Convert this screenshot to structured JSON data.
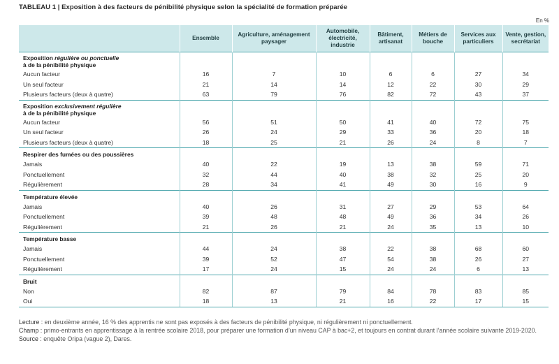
{
  "title": "TABLEAU 1 | Exposition à des facteurs de pénibilité physique selon la spécialité de formation préparée",
  "unit": "En %",
  "columns": [
    "Ensemble",
    "Agriculture, aménagement paysager",
    "Automobile, électricité, industrie",
    "Bâtiment, artisanat",
    "Métiers de bouche",
    "Services aux particuliers",
    "Vente, gestion, secrétariat"
  ],
  "sections": [
    {
      "title_pre": "Exposition ",
      "title_em": "régulière ou ponctuelle",
      "title_post": " à de la pénibilité physique",
      "rows": [
        {
          "label": "Aucun facteur",
          "values": [
            "16",
            "7",
            "10",
            "6",
            "6",
            "27",
            "34"
          ]
        },
        {
          "label": "Un seul facteur",
          "values": [
            "21",
            "14",
            "14",
            "12",
            "22",
            "30",
            "29"
          ]
        },
        {
          "label": "Plusieurs facteurs (deux à quatre)",
          "values": [
            "63",
            "79",
            "76",
            "82",
            "72",
            "43",
            "37"
          ]
        }
      ]
    },
    {
      "title_pre": "Exposition ",
      "title_em": "exclusivement régulière",
      "title_post": " à de la pénibilité physique",
      "rows": [
        {
          "label": "Aucun facteur",
          "values": [
            "56",
            "51",
            "50",
            "41",
            "40",
            "72",
            "75"
          ]
        },
        {
          "label": "Un seul facteur",
          "values": [
            "26",
            "24",
            "29",
            "33",
            "36",
            "20",
            "18"
          ]
        },
        {
          "label": "Plusieurs facteurs (deux à quatre)",
          "values": [
            "18",
            "25",
            "21",
            "26",
            "24",
            "8",
            "7"
          ]
        }
      ]
    },
    {
      "title_pre": "Respirer des fumées ou des poussières",
      "title_em": "",
      "title_post": "",
      "rows": [
        {
          "label": "Jamais",
          "values": [
            "40",
            "22",
            "19",
            "13",
            "38",
            "59",
            "71"
          ]
        },
        {
          "label": "Ponctuellement",
          "values": [
            "32",
            "44",
            "40",
            "38",
            "32",
            "25",
            "20"
          ]
        },
        {
          "label": "Régulièrement",
          "values": [
            "28",
            "34",
            "41",
            "49",
            "30",
            "16",
            "9"
          ]
        }
      ]
    },
    {
      "title_pre": "Température élevée",
      "title_em": "",
      "title_post": "",
      "rows": [
        {
          "label": "Jamais",
          "values": [
            "40",
            "26",
            "31",
            "27",
            "29",
            "53",
            "64"
          ]
        },
        {
          "label": "Ponctuellement",
          "values": [
            "39",
            "48",
            "48",
            "49",
            "36",
            "34",
            "26"
          ]
        },
        {
          "label": "Régulièrement",
          "values": [
            "21",
            "26",
            "21",
            "24",
            "35",
            "13",
            "10"
          ]
        }
      ]
    },
    {
      "title_pre": "Température basse",
      "title_em": "",
      "title_post": "",
      "rows": [
        {
          "label": "Jamais",
          "values": [
            "44",
            "24",
            "38",
            "22",
            "38",
            "68",
            "60"
          ]
        },
        {
          "label": "Ponctuellement",
          "values": [
            "39",
            "52",
            "47",
            "54",
            "38",
            "26",
            "27"
          ]
        },
        {
          "label": "Régulièrement",
          "values": [
            "17",
            "24",
            "15",
            "24",
            "24",
            "6",
            "13"
          ]
        }
      ]
    },
    {
      "title_pre": "Bruit",
      "title_em": "",
      "title_post": "",
      "rows": [
        {
          "label": "Non",
          "values": [
            "82",
            "87",
            "79",
            "84",
            "78",
            "83",
            "85"
          ]
        },
        {
          "label": "Oui",
          "values": [
            "18",
            "13",
            "21",
            "16",
            "22",
            "17",
            "15"
          ]
        }
      ]
    }
  ],
  "notes": {
    "lecture_label": "Lecture :",
    "lecture": " en deuxième année, 16 % des apprentis ne sont pas exposés à des facteurs de pénibilité physique, ni régulièrement ni ponctuellement.",
    "champ_label": "Champ :",
    "champ": " primo-entrants en apprentissage à la rentrée scolaire 2018, pour préparer une formation d’un niveau CAP à bac+2, et toujours en contrat durant l’année scolaire suivante 2019-2020.",
    "source_label": "Source :",
    "source": " enquête Oripa (vague 2), Dares."
  }
}
